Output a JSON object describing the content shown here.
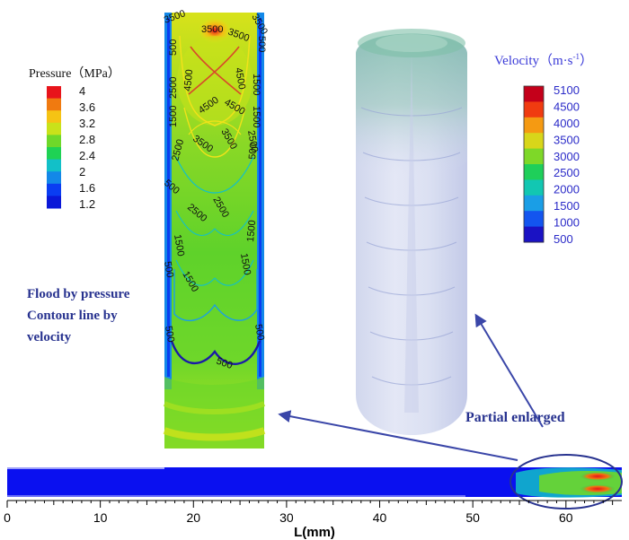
{
  "pressure_legend": {
    "title": "Pressure（MPa）",
    "ticks": [
      "4",
      "3.6",
      "3.2",
      "2.8",
      "2.4",
      "2",
      "1.6",
      "1.2"
    ],
    "colors": [
      "#e8141b",
      "#f07a10",
      "#f5c314",
      "#c9e21a",
      "#6ed82a",
      "#1fd254",
      "#12c0c8",
      "#1388e8",
      "#0a3df2",
      "#0a18d8"
    ]
  },
  "velocity_legend": {
    "title": "Velocity（m·s",
    "title_sup": "-1",
    "title_end": "）",
    "ticks": [
      "5100",
      "4500",
      "4000",
      "3500",
      "3000",
      "2500",
      "2000",
      "1500",
      "1000",
      "500"
    ],
    "colors": [
      "#c4001a",
      "#f03b10",
      "#f59a12",
      "#d8d61a",
      "#7ed828",
      "#1fcf5a",
      "#12c7b2",
      "#1a9ee6",
      "#1355ef",
      "#1a12c4"
    ]
  },
  "contour_labels": {
    "top_left": "3500",
    "top_center": "3500",
    "top_right_a": "3500",
    "top_right_b": "3500",
    "side_left_top": "500",
    "side_right_top": "500",
    "upper_left_a": "2500",
    "upper_left_b": "4500",
    "upper_right_a": "4500",
    "upper_right_b": "1500",
    "center_a": "4500",
    "center_b": "4500",
    "side_left_mid": "1500",
    "side_right_mid": "1500",
    "mid_left": "2500",
    "mid_center_a": "3500",
    "mid_center_b": "3500",
    "mid_right": "2500",
    "side_left_low": "500",
    "side_right_low": "500",
    "lower_left": "2500",
    "lower_center": "2500",
    "lower_side_left": "1500",
    "lower_side_right": "1500",
    "low_left": "500",
    "low_center": "1500",
    "low_right": "1500",
    "bottom_left": "500",
    "bottom_right": "500",
    "bottom_center": "500"
  },
  "annotations": {
    "flood_line1": "Flood by pressure",
    "flood_line2": "Contour line  by",
    "flood_line3": "velocity",
    "partial": "Partial enlarged"
  },
  "axis": {
    "xlabel": "L(mm)",
    "ticks": [
      "0",
      "10",
      "20",
      "30",
      "40",
      "50",
      "60"
    ]
  },
  "colors": {
    "annotation_text": "#27328f",
    "arrow": "#3a46a8",
    "strip": "#0a10f0"
  }
}
